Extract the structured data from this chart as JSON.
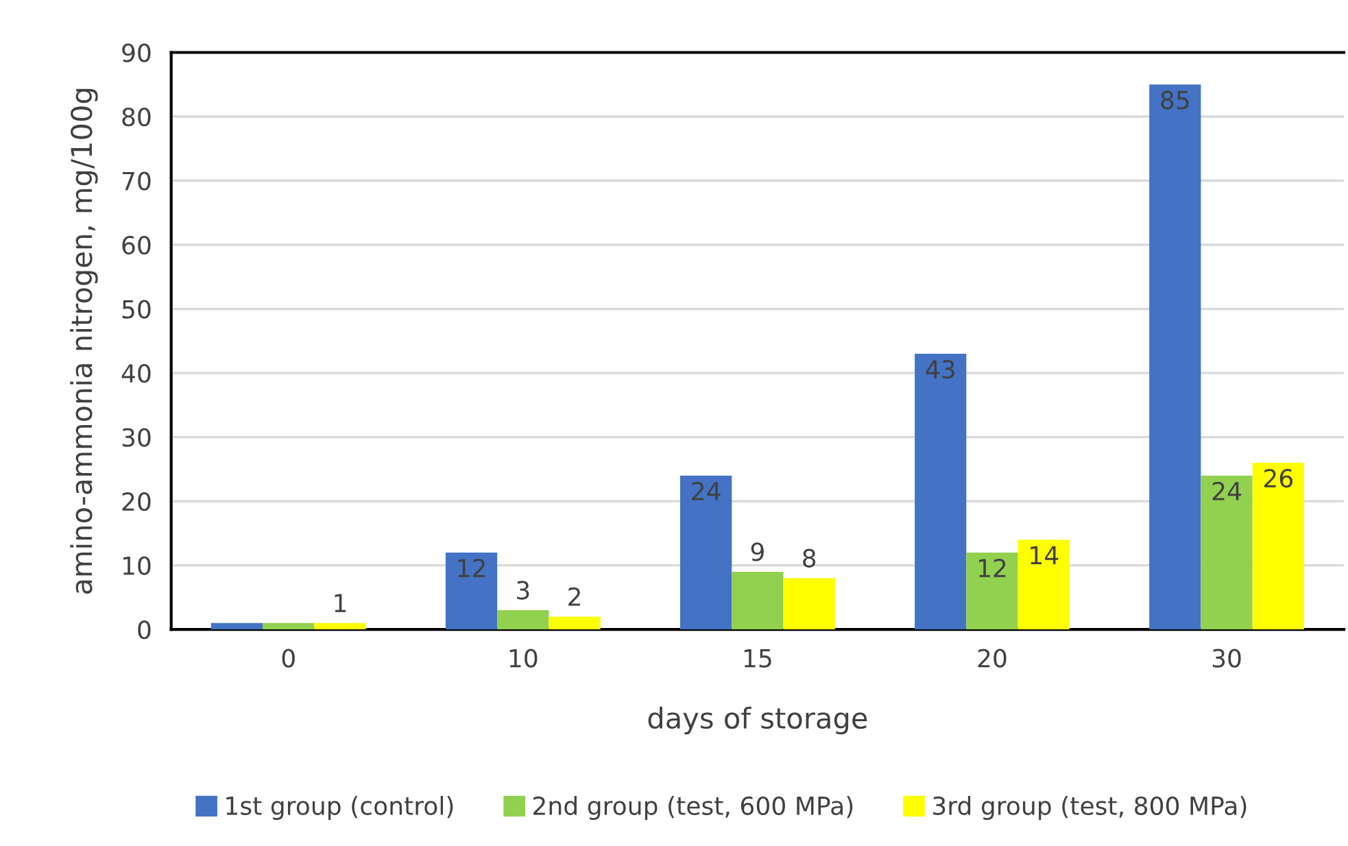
{
  "chart_data": {
    "type": "bar",
    "xlabel": "days of storage",
    "ylabel": "amino-ammonia nitrogen, mg/100g",
    "categories": [
      "0",
      "10",
      "15",
      "20",
      "30"
    ],
    "series": [
      {
        "name": "1st group (control)",
        "color": "#4472c4",
        "values": [
          1,
          12,
          24,
          43,
          85
        ],
        "value_labels": [
          null,
          "12",
          "24",
          "43",
          "85"
        ]
      },
      {
        "name": "2nd group (test, 600 MPa)",
        "color": "#92d050",
        "values": [
          1,
          3,
          9,
          12,
          24
        ],
        "value_labels": [
          null,
          "3",
          "9",
          "12",
          "24"
        ]
      },
      {
        "name": "3rd group (test, 800 MPa)",
        "color": "#ffff00",
        "values": [
          1,
          2,
          8,
          14,
          26
        ],
        "value_labels": [
          "1",
          "2",
          "8",
          "14",
          "26"
        ]
      }
    ],
    "ylim": [
      0,
      90
    ],
    "yticks": [
      0,
      10,
      20,
      30,
      40,
      50,
      60,
      70,
      80,
      90
    ],
    "grid": "y",
    "legend": "bottom"
  }
}
